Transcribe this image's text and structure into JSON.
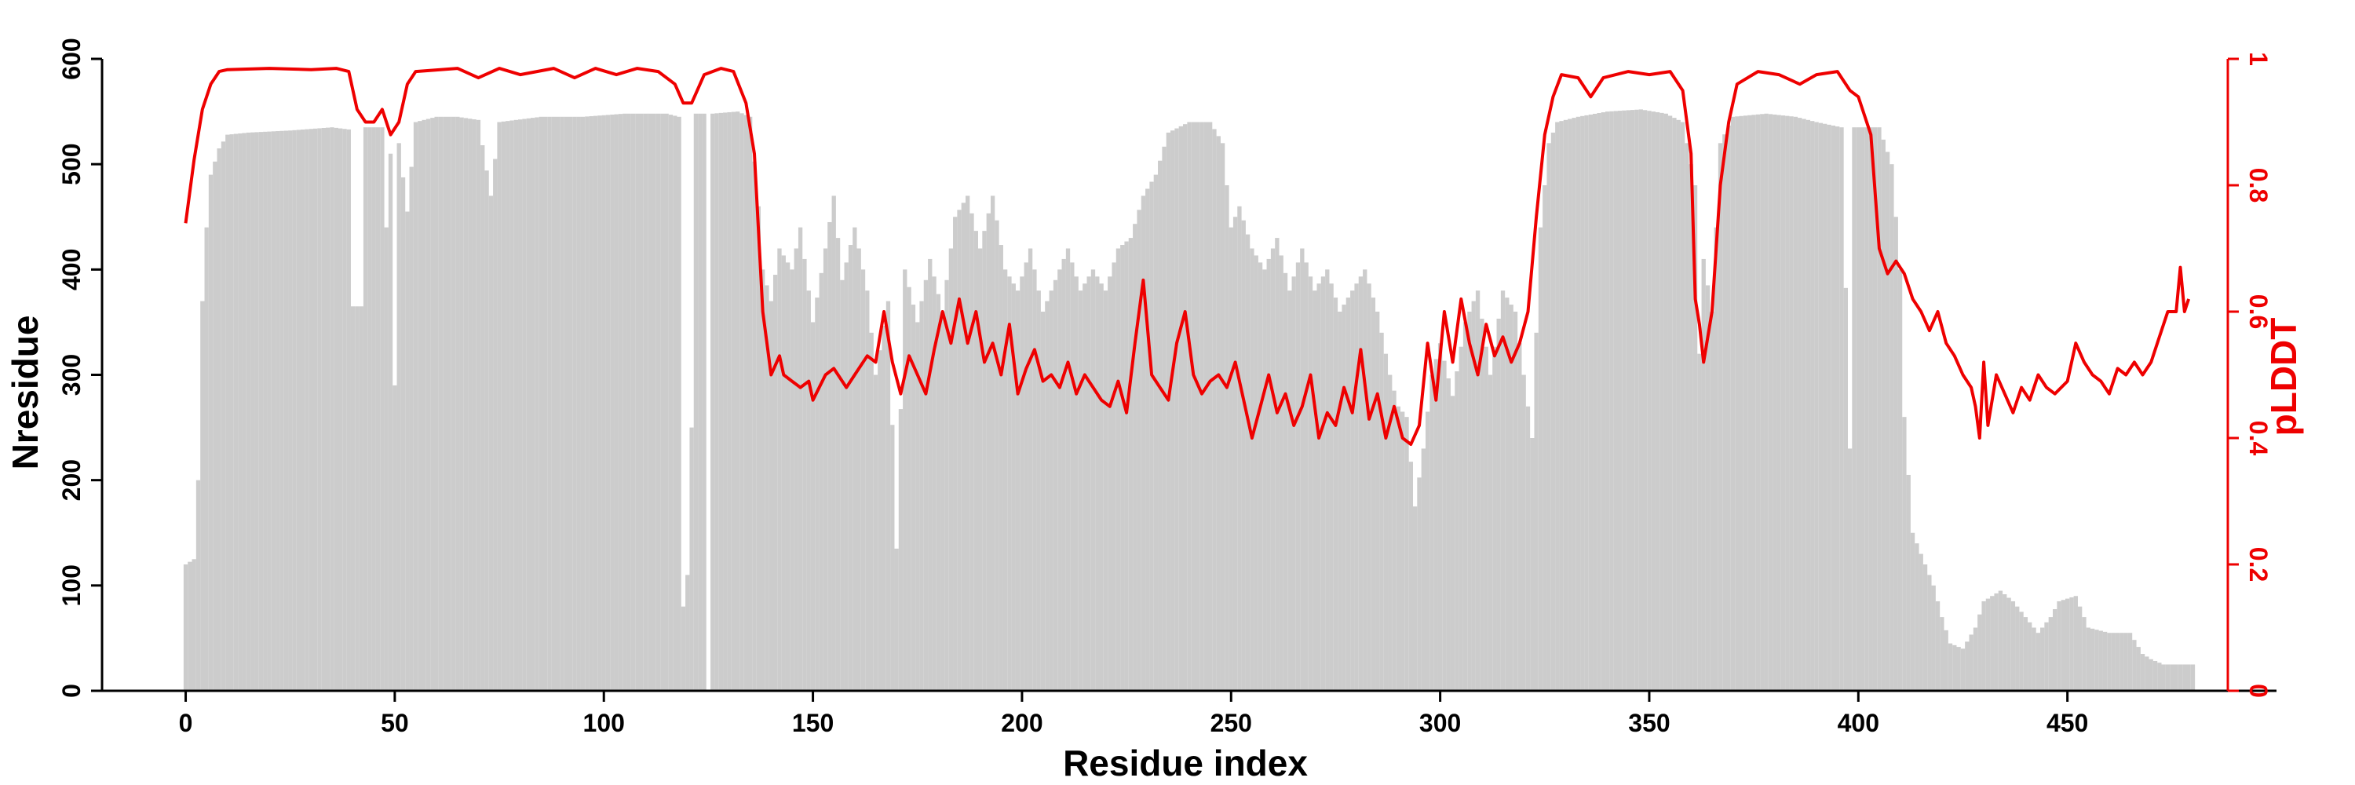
{
  "chart_data": {
    "type": "bar+line",
    "title": "",
    "xlabel": "Residue index",
    "ylabel_left": "Nresidue",
    "ylabel_right": "pLDDT",
    "xlim": [
      -20,
      500
    ],
    "ylim_left": [
      0,
      600
    ],
    "ylim_right": [
      0,
      1
    ],
    "x_ticks": [
      0,
      50,
      100,
      150,
      200,
      250,
      300,
      350,
      400,
      450
    ],
    "y_left_ticks": [
      0,
      100,
      200,
      300,
      400,
      500,
      600
    ],
    "y_right_ticks": [
      0,
      0.2,
      0.4,
      0.6,
      0.8,
      1
    ],
    "colors": {
      "bars": "#cccccc",
      "line": "#ee0000",
      "axis": "#000000",
      "right_axis": "#ee0000"
    },
    "grid": false,
    "legend": "none",
    "nresidue_keypoints": [
      [
        0,
        120
      ],
      [
        2,
        125
      ],
      [
        3,
        200
      ],
      [
        4,
        370
      ],
      [
        5,
        440
      ],
      [
        6,
        490
      ],
      [
        8,
        515
      ],
      [
        10,
        528
      ],
      [
        15,
        530
      ],
      [
        25,
        532
      ],
      [
        35,
        535
      ],
      [
        39,
        533
      ],
      [
        40,
        365
      ],
      [
        42,
        365
      ],
      [
        43,
        535
      ],
      [
        47,
        535
      ],
      [
        48,
        440
      ],
      [
        49,
        510
      ],
      [
        50,
        290
      ],
      [
        51,
        520
      ],
      [
        53,
        455
      ],
      [
        55,
        540
      ],
      [
        60,
        545
      ],
      [
        65,
        545
      ],
      [
        70,
        542
      ],
      [
        73,
        470
      ],
      [
        75,
        540
      ],
      [
        85,
        545
      ],
      [
        95,
        545
      ],
      [
        105,
        548
      ],
      [
        115,
        548
      ],
      [
        118,
        545
      ],
      [
        119,
        80
      ],
      [
        120,
        110
      ],
      [
        121,
        250
      ],
      [
        122,
        548
      ],
      [
        124,
        548
      ],
      [
        125,
        0
      ],
      [
        126,
        548
      ],
      [
        132,
        550
      ],
      [
        135,
        545
      ],
      [
        137,
        460
      ],
      [
        138,
        400
      ],
      [
        140,
        370
      ],
      [
        142,
        420
      ],
      [
        145,
        400
      ],
      [
        147,
        440
      ],
      [
        150,
        350
      ],
      [
        153,
        420
      ],
      [
        155,
        470
      ],
      [
        157,
        390
      ],
      [
        160,
        440
      ],
      [
        163,
        380
      ],
      [
        165,
        300
      ],
      [
        168,
        370
      ],
      [
        170,
        135
      ],
      [
        172,
        400
      ],
      [
        175,
        350
      ],
      [
        178,
        410
      ],
      [
        181,
        360
      ],
      [
        184,
        450
      ],
      [
        187,
        470
      ],
      [
        190,
        420
      ],
      [
        193,
        470
      ],
      [
        196,
        400
      ],
      [
        199,
        380
      ],
      [
        202,
        420
      ],
      [
        205,
        360
      ],
      [
        208,
        390
      ],
      [
        211,
        420
      ],
      [
        214,
        380
      ],
      [
        217,
        400
      ],
      [
        220,
        380
      ],
      [
        223,
        420
      ],
      [
        226,
        430
      ],
      [
        229,
        470
      ],
      [
        232,
        490
      ],
      [
        235,
        530
      ],
      [
        240,
        540
      ],
      [
        245,
        540
      ],
      [
        248,
        520
      ],
      [
        250,
        440
      ],
      [
        252,
        460
      ],
      [
        255,
        420
      ],
      [
        258,
        400
      ],
      [
        261,
        430
      ],
      [
        264,
        380
      ],
      [
        267,
        420
      ],
      [
        270,
        380
      ],
      [
        273,
        400
      ],
      [
        276,
        360
      ],
      [
        279,
        380
      ],
      [
        282,
        400
      ],
      [
        285,
        360
      ],
      [
        288,
        300
      ],
      [
        290,
        270
      ],
      [
        292,
        260
      ],
      [
        294,
        175
      ],
      [
        296,
        230
      ],
      [
        298,
        300
      ],
      [
        300,
        330
      ],
      [
        303,
        280
      ],
      [
        306,
        350
      ],
      [
        309,
        380
      ],
      [
        312,
        300
      ],
      [
        315,
        380
      ],
      [
        318,
        360
      ],
      [
        320,
        300
      ],
      [
        322,
        240
      ],
      [
        324,
        440
      ],
      [
        326,
        520
      ],
      [
        328,
        540
      ],
      [
        333,
        545
      ],
      [
        340,
        550
      ],
      [
        348,
        552
      ],
      [
        354,
        548
      ],
      [
        358,
        540
      ],
      [
        361,
        480
      ],
      [
        362,
        320
      ],
      [
        363,
        410
      ],
      [
        365,
        360
      ],
      [
        367,
        520
      ],
      [
        370,
        545
      ],
      [
        378,
        548
      ],
      [
        385,
        545
      ],
      [
        390,
        540
      ],
      [
        396,
        535
      ],
      [
        398,
        230
      ],
      [
        399,
        535
      ],
      [
        405,
        535
      ],
      [
        408,
        500
      ],
      [
        410,
        400
      ],
      [
        411,
        260
      ],
      [
        413,
        150
      ],
      [
        415,
        130
      ],
      [
        418,
        100
      ],
      [
        420,
        70
      ],
      [
        422,
        45
      ],
      [
        425,
        40
      ],
      [
        428,
        60
      ],
      [
        430,
        85
      ],
      [
        434,
        95
      ],
      [
        437,
        85
      ],
      [
        440,
        70
      ],
      [
        443,
        55
      ],
      [
        446,
        70
      ],
      [
        448,
        85
      ],
      [
        452,
        90
      ],
      [
        455,
        60
      ],
      [
        460,
        55
      ],
      [
        465,
        55
      ],
      [
        468,
        35
      ],
      [
        470,
        30
      ],
      [
        473,
        25
      ],
      [
        478,
        25
      ],
      [
        480,
        25
      ]
    ],
    "plddt_keypoints": [
      [
        0,
        0.74
      ],
      [
        2,
        0.84
      ],
      [
        4,
        0.92
      ],
      [
        6,
        0.96
      ],
      [
        8,
        0.98
      ],
      [
        10,
        0.983
      ],
      [
        20,
        0.985
      ],
      [
        30,
        0.983
      ],
      [
        36,
        0.985
      ],
      [
        39,
        0.98
      ],
      [
        41,
        0.92
      ],
      [
        43,
        0.9
      ],
      [
        45,
        0.9
      ],
      [
        47,
        0.92
      ],
      [
        49,
        0.88
      ],
      [
        51,
        0.9
      ],
      [
        53,
        0.96
      ],
      [
        55,
        0.98
      ],
      [
        65,
        0.985
      ],
      [
        70,
        0.97
      ],
      [
        75,
        0.985
      ],
      [
        80,
        0.975
      ],
      [
        88,
        0.985
      ],
      [
        93,
        0.97
      ],
      [
        98,
        0.985
      ],
      [
        103,
        0.975
      ],
      [
        108,
        0.985
      ],
      [
        113,
        0.98
      ],
      [
        117,
        0.96
      ],
      [
        119,
        0.93
      ],
      [
        121,
        0.93
      ],
      [
        124,
        0.975
      ],
      [
        128,
        0.985
      ],
      [
        131,
        0.98
      ],
      [
        134,
        0.93
      ],
      [
        136,
        0.85
      ],
      [
        138,
        0.6
      ],
      [
        139,
        0.55
      ],
      [
        140,
        0.5
      ],
      [
        142,
        0.53
      ],
      [
        143,
        0.5
      ],
      [
        145,
        0.49
      ],
      [
        147,
        0.48
      ],
      [
        149,
        0.49
      ],
      [
        150,
        0.46
      ],
      [
        153,
        0.5
      ],
      [
        155,
        0.51
      ],
      [
        158,
        0.48
      ],
      [
        160,
        0.5
      ],
      [
        163,
        0.53
      ],
      [
        165,
        0.52
      ],
      [
        167,
        0.6
      ],
      [
        169,
        0.52
      ],
      [
        171,
        0.47
      ],
      [
        173,
        0.53
      ],
      [
        175,
        0.5
      ],
      [
        177,
        0.47
      ],
      [
        179,
        0.54
      ],
      [
        181,
        0.6
      ],
      [
        183,
        0.55
      ],
      [
        185,
        0.62
      ],
      [
        187,
        0.55
      ],
      [
        189,
        0.6
      ],
      [
        191,
        0.52
      ],
      [
        193,
        0.55
      ],
      [
        195,
        0.5
      ],
      [
        197,
        0.58
      ],
      [
        199,
        0.47
      ],
      [
        201,
        0.51
      ],
      [
        203,
        0.54
      ],
      [
        205,
        0.49
      ],
      [
        207,
        0.5
      ],
      [
        209,
        0.48
      ],
      [
        211,
        0.52
      ],
      [
        213,
        0.47
      ],
      [
        215,
        0.5
      ],
      [
        217,
        0.48
      ],
      [
        219,
        0.46
      ],
      [
        221,
        0.45
      ],
      [
        223,
        0.49
      ],
      [
        225,
        0.44
      ],
      [
        227,
        0.55
      ],
      [
        229,
        0.65
      ],
      [
        231,
        0.5
      ],
      [
        233,
        0.48
      ],
      [
        235,
        0.46
      ],
      [
        237,
        0.55
      ],
      [
        239,
        0.6
      ],
      [
        241,
        0.5
      ],
      [
        243,
        0.47
      ],
      [
        245,
        0.49
      ],
      [
        247,
        0.5
      ],
      [
        249,
        0.48
      ],
      [
        251,
        0.52
      ],
      [
        253,
        0.46
      ],
      [
        255,
        0.4
      ],
      [
        257,
        0.45
      ],
      [
        259,
        0.5
      ],
      [
        261,
        0.44
      ],
      [
        263,
        0.47
      ],
      [
        265,
        0.42
      ],
      [
        267,
        0.45
      ],
      [
        269,
        0.5
      ],
      [
        271,
        0.4
      ],
      [
        273,
        0.44
      ],
      [
        275,
        0.42
      ],
      [
        277,
        0.48
      ],
      [
        279,
        0.44
      ],
      [
        281,
        0.54
      ],
      [
        283,
        0.43
      ],
      [
        285,
        0.47
      ],
      [
        287,
        0.4
      ],
      [
        289,
        0.45
      ],
      [
        291,
        0.4
      ],
      [
        293,
        0.39
      ],
      [
        295,
        0.42
      ],
      [
        297,
        0.55
      ],
      [
        299,
        0.46
      ],
      [
        301,
        0.6
      ],
      [
        303,
        0.52
      ],
      [
        305,
        0.62
      ],
      [
        307,
        0.55
      ],
      [
        309,
        0.5
      ],
      [
        311,
        0.58
      ],
      [
        313,
        0.53
      ],
      [
        315,
        0.56
      ],
      [
        317,
        0.52
      ],
      [
        319,
        0.55
      ],
      [
        321,
        0.6
      ],
      [
        323,
        0.75
      ],
      [
        325,
        0.88
      ],
      [
        327,
        0.94
      ],
      [
        329,
        0.975
      ],
      [
        333,
        0.97
      ],
      [
        336,
        0.94
      ],
      [
        339,
        0.97
      ],
      [
        345,
        0.98
      ],
      [
        350,
        0.975
      ],
      [
        355,
        0.98
      ],
      [
        358,
        0.95
      ],
      [
        360,
        0.85
      ],
      [
        361,
        0.62
      ],
      [
        362,
        0.58
      ],
      [
        363,
        0.52
      ],
      [
        365,
        0.6
      ],
      [
        367,
        0.8
      ],
      [
        369,
        0.9
      ],
      [
        371,
        0.96
      ],
      [
        376,
        0.98
      ],
      [
        381,
        0.975
      ],
      [
        386,
        0.96
      ],
      [
        390,
        0.975
      ],
      [
        395,
        0.98
      ],
      [
        398,
        0.95
      ],
      [
        400,
        0.94
      ],
      [
        403,
        0.88
      ],
      [
        405,
        0.7
      ],
      [
        407,
        0.66
      ],
      [
        409,
        0.68
      ],
      [
        411,
        0.66
      ],
      [
        413,
        0.62
      ],
      [
        415,
        0.6
      ],
      [
        417,
        0.57
      ],
      [
        419,
        0.6
      ],
      [
        421,
        0.55
      ],
      [
        423,
        0.53
      ],
      [
        425,
        0.5
      ],
      [
        427,
        0.48
      ],
      [
        428,
        0.45
      ],
      [
        429,
        0.4
      ],
      [
        430,
        0.52
      ],
      [
        431,
        0.42
      ],
      [
        433,
        0.5
      ],
      [
        435,
        0.47
      ],
      [
        437,
        0.44
      ],
      [
        439,
        0.48
      ],
      [
        441,
        0.46
      ],
      [
        443,
        0.5
      ],
      [
        445,
        0.48
      ],
      [
        447,
        0.47
      ],
      [
        450,
        0.49
      ],
      [
        452,
        0.55
      ],
      [
        454,
        0.52
      ],
      [
        456,
        0.5
      ],
      [
        458,
        0.49
      ],
      [
        460,
        0.47
      ],
      [
        462,
        0.51
      ],
      [
        464,
        0.5
      ],
      [
        466,
        0.52
      ],
      [
        468,
        0.5
      ],
      [
        470,
        0.52
      ],
      [
        472,
        0.56
      ],
      [
        474,
        0.6
      ],
      [
        476,
        0.6
      ],
      [
        477,
        0.67
      ],
      [
        478,
        0.6
      ],
      [
        479,
        0.62
      ]
    ]
  }
}
